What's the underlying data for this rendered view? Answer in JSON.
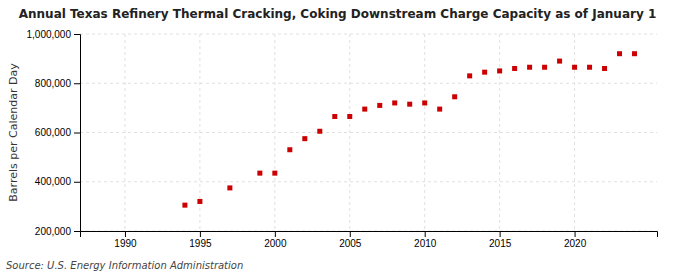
{
  "chart_data": {
    "type": "scatter",
    "title": "Annual Texas Refinery Thermal Cracking, Coking Downstream Charge Capacity as of January 1",
    "ylabel": "Barrels per Calendar Day",
    "annotations": [
      "Source: U.S. Energy Information Administration"
    ],
    "x": [
      1994,
      1995,
      1997,
      1999,
      2000,
      2001,
      2002,
      2003,
      2004,
      2005,
      2006,
      2007,
      2008,
      2009,
      2010,
      2011,
      2012,
      2013,
      2014,
      2015,
      2016,
      2017,
      2018,
      2019,
      2020,
      2021,
      2022,
      2023,
      2024
    ],
    "values": [
      305000,
      320000,
      375000,
      435000,
      435000,
      530000,
      575000,
      605000,
      665000,
      665000,
      695000,
      710000,
      720000,
      715000,
      720000,
      695000,
      745000,
      830000,
      845000,
      850000,
      860000,
      865000,
      865000,
      890000,
      865000,
      865000,
      860000,
      920000,
      920000
    ],
    "color": "#cc0000",
    "marker": "square",
    "xlim": [
      1987,
      2025.5
    ],
    "ylim": [
      200000,
      1000000
    ],
    "xticks": [
      1990,
      1995,
      2000,
      2005,
      2010,
      2015,
      2020
    ],
    "yticks": [
      {
        "value": 200000,
        "label": "200,000"
      },
      {
        "value": 400000,
        "label": "400,000"
      },
      {
        "value": 600000,
        "label": "600,000"
      },
      {
        "value": 800000,
        "label": "800,000"
      },
      {
        "value": 1000000,
        "label": "1,000,000"
      }
    ],
    "grid": true
  }
}
